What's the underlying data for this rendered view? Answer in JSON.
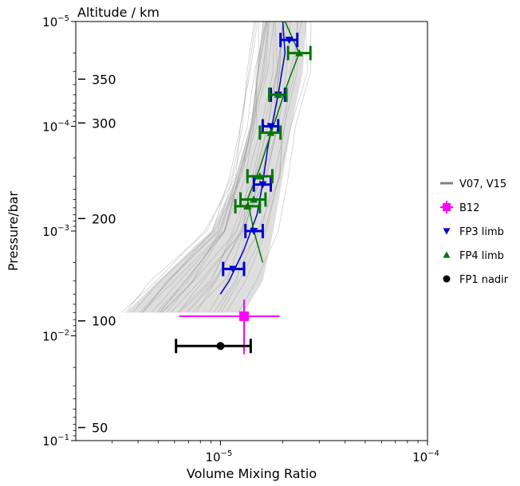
{
  "chart_data": {
    "type": "scatter",
    "xlabel": "Volume Mixing Ratio",
    "ylabel": "Pressure/bar",
    "x_scale": "log",
    "y_scale": "log",
    "xlim": [
      2e-06,
      0.0001
    ],
    "ylim": [
      1e-05,
      0.1
    ],
    "y_inverted": true,
    "grid": false,
    "legend_position": "right-outside",
    "x_ticks": [
      {
        "value": 1e-05,
        "base": "10",
        "exp": "−5"
      },
      {
        "value": 0.0001,
        "base": "10",
        "exp": "−4"
      }
    ],
    "y_ticks": [
      {
        "value": 1e-05,
        "base": "10",
        "exp": "−5"
      },
      {
        "value": 0.0001,
        "base": "10",
        "exp": "−4"
      },
      {
        "value": 0.001,
        "base": "10",
        "exp": "−3"
      },
      {
        "value": 0.01,
        "base": "10",
        "exp": "−2"
      },
      {
        "value": 0.1,
        "base": "10",
        "exp": "−1"
      }
    ],
    "altitude_axis": {
      "label": "Altitude / km",
      "ticks": [
        {
          "label": "350",
          "pressure": 3.55e-05
        },
        {
          "label": "300",
          "pressure": 9.3e-05
        },
        {
          "label": "200",
          "pressure": 0.00076
        },
        {
          "label": "100",
          "pressure": 0.0072
        },
        {
          "label": "50",
          "pressure": 0.075
        }
      ]
    },
    "series": [
      {
        "name": "V07, V15",
        "type": "line",
        "color": "#808080",
        "envelope_left": [
          {
            "x": 1.6e-05,
            "y": 1e-05
          },
          {
            "x": 1.5e-05,
            "y": 3e-05
          },
          {
            "x": 1.4e-05,
            "y": 0.0001
          },
          {
            "x": 1.2e-05,
            "y": 0.0003
          },
          {
            "x": 9e-06,
            "y": 0.001
          },
          {
            "x": 5e-06,
            "y": 0.003
          },
          {
            "x": 3.5e-06,
            "y": 0.006
          }
        ],
        "envelope_right": [
          {
            "x": 2.6e-05,
            "y": 1e-05
          },
          {
            "x": 2.5e-05,
            "y": 3e-05
          },
          {
            "x": 2.2e-05,
            "y": 0.0001
          },
          {
            "x": 2e-05,
            "y": 0.0003
          },
          {
            "x": 1.8e-05,
            "y": 0.001
          },
          {
            "x": 1.6e-05,
            "y": 0.003
          },
          {
            "x": 1.3e-05,
            "y": 0.006
          }
        ]
      },
      {
        "name": "B12",
        "type": "errorbar",
        "color": "#ff00ff",
        "marker": "square",
        "points": [
          {
            "x": 1.3e-05,
            "y": 0.0065,
            "xerr": [
              6.3e-06,
              1.93e-05
            ],
            "yerr": [
              0.0045,
              0.015
            ]
          }
        ]
      },
      {
        "name": "FP3 limb",
        "type": "errorbar",
        "color": "#0000cc",
        "marker": "triangle-down",
        "points": [
          {
            "x": 2.15e-05,
            "y": 1.5e-05,
            "xerr": [
              1.95e-05,
              2.35e-05
            ]
          },
          {
            "x": 1.9e-05,
            "y": 5e-05,
            "xerr": [
              1.75e-05,
              2.05e-05
            ]
          },
          {
            "x": 1.75e-05,
            "y": 0.0001,
            "xerr": [
              1.6e-05,
              1.9e-05
            ]
          },
          {
            "x": 1.6e-05,
            "y": 0.00036,
            "xerr": [
              1.45e-05,
              1.75e-05
            ]
          },
          {
            "x": 1.45e-05,
            "y": 0.001,
            "xerr": [
              1.32e-05,
              1.6e-05
            ]
          },
          {
            "x": 1.15e-05,
            "y": 0.0023,
            "xerr": [
              1.03e-05,
              1.3e-05
            ]
          }
        ]
      },
      {
        "name": "FP4 limb",
        "type": "errorbar",
        "color": "#007700",
        "marker": "triangle-up",
        "points": [
          {
            "x": 2.4e-05,
            "y": 2e-05,
            "xerr": [
              2.12e-05,
              2.72e-05
            ]
          },
          {
            "x": 1.9e-05,
            "y": 5e-05,
            "xerr": [
              1.72e-05,
              2.08e-05
            ]
          },
          {
            "x": 1.75e-05,
            "y": 0.000115,
            "xerr": [
              1.55e-05,
              1.95e-05
            ]
          },
          {
            "x": 1.55e-05,
            "y": 0.0003,
            "xerr": [
              1.35e-05,
              1.78e-05
            ]
          },
          {
            "x": 1.45e-05,
            "y": 0.0005,
            "xerr": [
              1.25e-05,
              1.65e-05
            ]
          },
          {
            "x": 1.35e-05,
            "y": 0.00058,
            "xerr": [
              1.18e-05,
              1.55e-05
            ]
          }
        ]
      },
      {
        "name": "FP1 nadir",
        "type": "errorbar",
        "color": "#000000",
        "marker": "circle",
        "points": [
          {
            "x": 1e-05,
            "y": 0.0125,
            "xerr": [
              6.1e-06,
              1.4e-05
            ]
          }
        ]
      }
    ],
    "fit_curves": [
      {
        "color": "#0000cc",
        "points": [
          {
            "x": 2e-05,
            "y": 1e-05
          },
          {
            "x": 2.05e-05,
            "y": 2e-05
          },
          {
            "x": 1.9e-05,
            "y": 5e-05
          },
          {
            "x": 1.7e-05,
            "y": 0.00015
          },
          {
            "x": 1.6e-05,
            "y": 0.00035
          },
          {
            "x": 1.5e-05,
            "y": 0.0007
          },
          {
            "x": 1.3e-05,
            "y": 0.0015
          },
          {
            "x": 1.1e-05,
            "y": 0.003
          },
          {
            "x": 1e-05,
            "y": 0.004
          }
        ]
      },
      {
        "color": "#007700",
        "points": [
          {
            "x": 2.05e-05,
            "y": 1e-05
          },
          {
            "x": 2.4e-05,
            "y": 2e-05
          },
          {
            "x": 2.1e-05,
            "y": 4e-05
          },
          {
            "x": 1.8e-05,
            "y": 0.0001
          },
          {
            "x": 1.55e-05,
            "y": 0.00025
          },
          {
            "x": 1.35e-05,
            "y": 0.0005
          },
          {
            "x": 1.45e-05,
            "y": 0.001
          },
          {
            "x": 1.6e-05,
            "y": 0.002
          }
        ]
      }
    ]
  }
}
